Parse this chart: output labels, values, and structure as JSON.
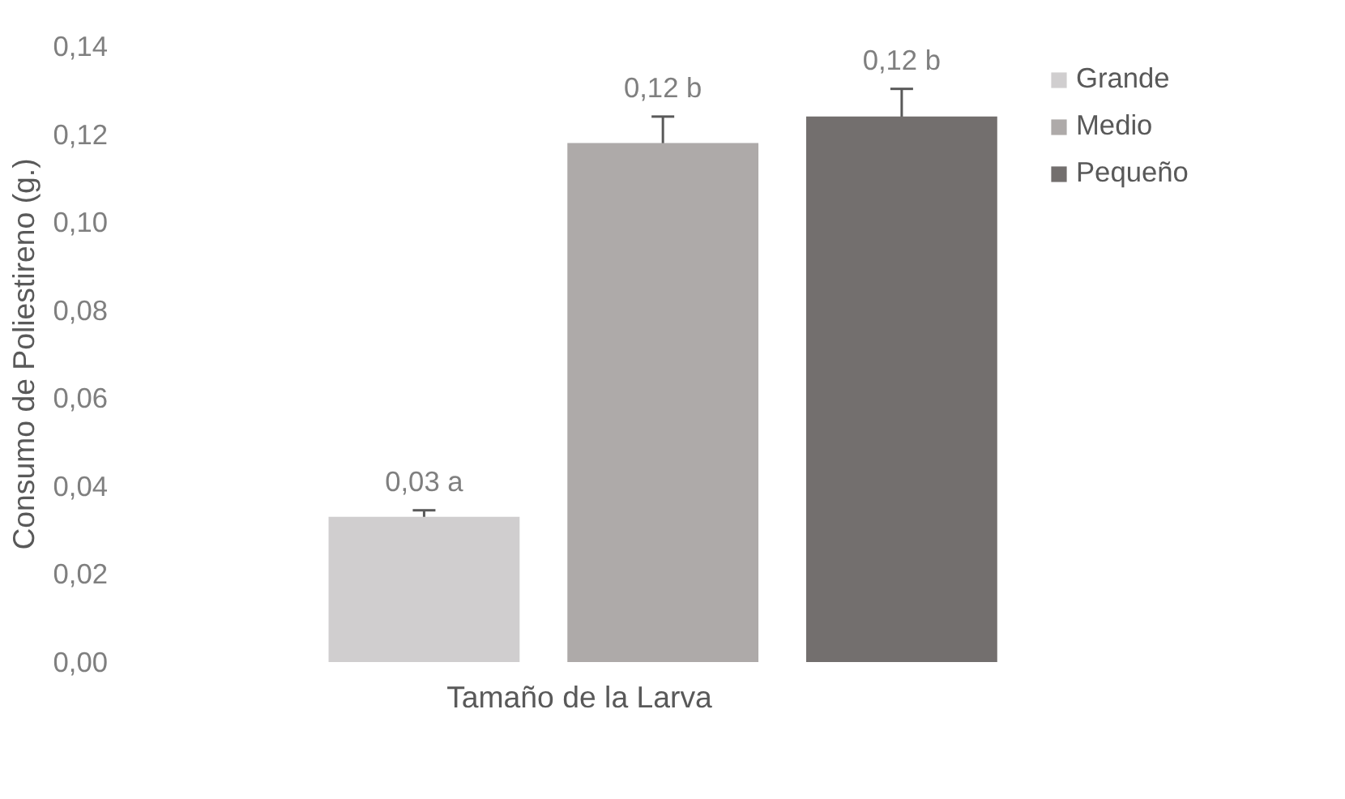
{
  "chart_data": {
    "type": "bar",
    "xlabel": "Tamaño de la Larva",
    "ylabel": "Consumo de Poliestireno (g.)",
    "categories": [
      null,
      null,
      null
    ],
    "series": [
      {
        "name": "Grande",
        "color": "#d0cecf",
        "values": [
          0.033,
          null,
          null
        ],
        "errors": [
          0.0015,
          null,
          null
        ],
        "value_labels": [
          "0,03 a",
          null,
          null
        ]
      },
      {
        "name": "Medio",
        "color": "#aeaaa9",
        "values": [
          null,
          0.118,
          null
        ],
        "errors": [
          null,
          0.006,
          null
        ],
        "value_labels": [
          null,
          "0,12 b",
          null
        ]
      },
      {
        "name": "Pequeño",
        "color": "#736f6e",
        "values": [
          null,
          null,
          0.124
        ],
        "errors": [
          null,
          null,
          0.0063
        ],
        "value_labels": [
          null,
          null,
          "0,12 b"
        ]
      }
    ],
    "ylim": [
      0,
      0.14
    ],
    "yticks": [
      {
        "value": 0,
        "label": "0,00"
      },
      {
        "value": 0.02,
        "label": "0,02"
      },
      {
        "value": 0.04,
        "label": "0,04"
      },
      {
        "value": 0.06,
        "label": "0,06"
      },
      {
        "value": 0.08,
        "label": "0,08"
      },
      {
        "value": 0.1,
        "label": "0,10"
      },
      {
        "value": 0.12,
        "label": "0,12"
      },
      {
        "value": 0.14,
        "label": "0,14"
      }
    ],
    "grid": false,
    "legend": "right",
    "stacked": true
  }
}
